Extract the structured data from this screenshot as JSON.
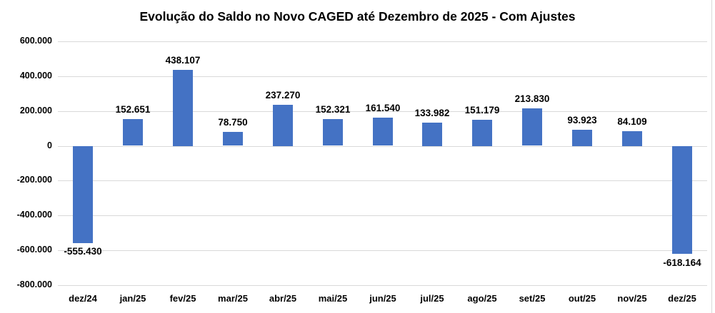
{
  "title": "Evolução do Saldo no Novo CAGED até Dezembro de 2025 - Com Ajustes",
  "chart_data": {
    "type": "bar",
    "title": "Evolução do Saldo no Novo CAGED até Dezembro de 2025 - Com Ajustes",
    "categories": [
      "dez/24",
      "jan/25",
      "fev/25",
      "mar/25",
      "abr/25",
      "mai/25",
      "jun/25",
      "jul/25",
      "ago/25",
      "set/25",
      "out/25",
      "nov/25",
      "dez/25"
    ],
    "values": [
      -555430,
      152651,
      438107,
      78750,
      237270,
      152321,
      161540,
      133982,
      151179,
      213830,
      93923,
      84109,
      -618164
    ],
    "value_labels": [
      "-555.430",
      "152.651",
      "438.107",
      "78.750",
      "237.270",
      "152.321",
      "161.540",
      "133.982",
      "151.179",
      "213.830",
      "93.923",
      "84.109",
      "-618.164"
    ],
    "xlabel": "",
    "ylabel": "",
    "ylim": [
      -800000,
      600000
    ],
    "ytick_step": 200000,
    "ytick_labels": [
      "600.000",
      "400.000",
      "200.000",
      "0",
      "-200.000",
      "-400.000",
      "-600.000",
      "-800.000"
    ],
    "grid": true,
    "legend": "none",
    "colors": {
      "bar_fill": "#4472C4",
      "gridline": "#D9D9D9",
      "text": "#000000",
      "background": "#FFFFFF"
    }
  }
}
